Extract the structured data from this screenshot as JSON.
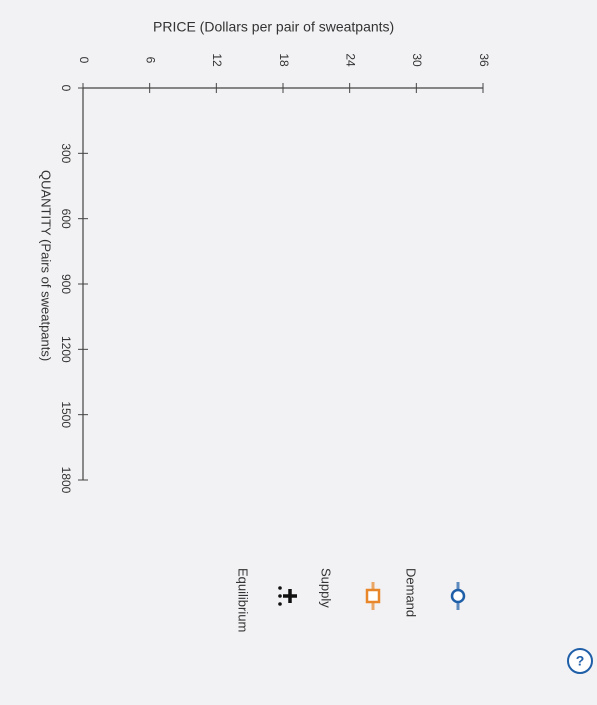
{
  "chart_data": {
    "type": "line",
    "title": "PRICE (Dollars per pair of sweatpants)",
    "x_label": "QUANTITY (Pairs of sweatpants)",
    "x": [],
    "series": [
      {
        "name": "Demand",
        "color": "#1f5fa8",
        "values": []
      },
      {
        "name": "Supply",
        "color": "#e8862a",
        "values": []
      },
      {
        "name": "Equilibrium",
        "color": "#111111",
        "values": []
      }
    ],
    "xlim": [
      0,
      1800
    ],
    "xticks": [
      0,
      300,
      600,
      900,
      1200,
      1500,
      1800
    ],
    "ylim": [
      0,
      36
    ],
    "yticks": [
      0,
      6,
      12,
      18,
      24,
      30,
      36
    ]
  }
}
